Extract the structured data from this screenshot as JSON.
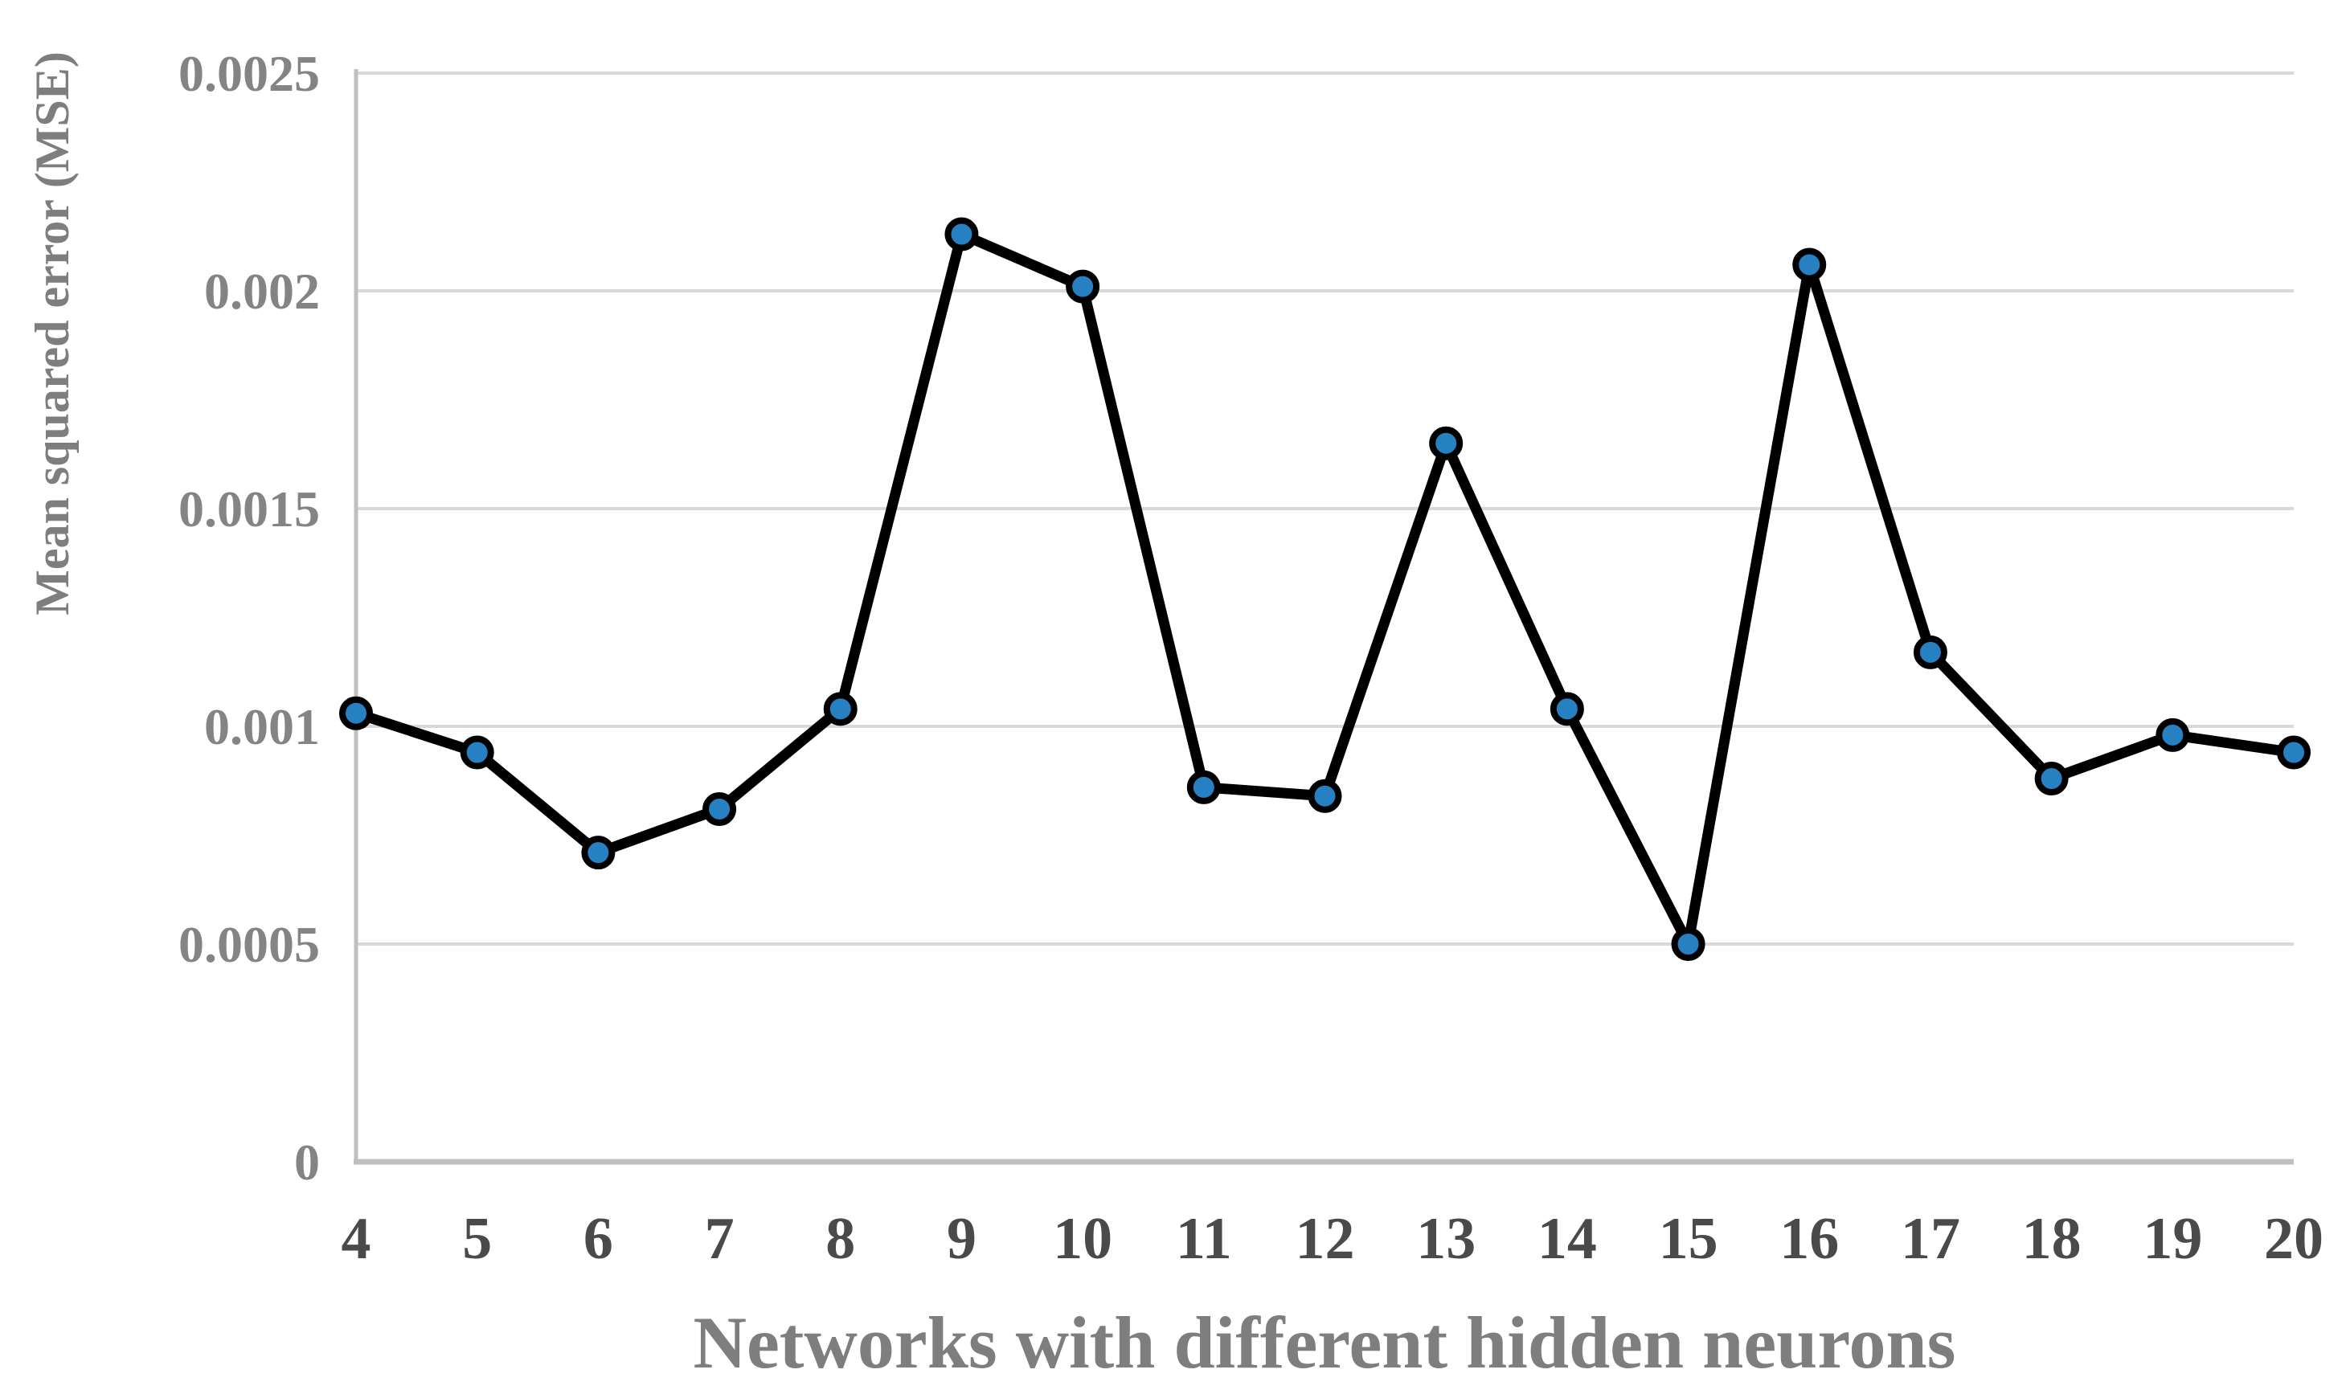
{
  "chart_data": {
    "type": "line",
    "title": "",
    "xlabel": "Networks with different hidden neurons",
    "ylabel": "Mean squared error (MSE)",
    "categories": [
      4,
      5,
      6,
      7,
      8,
      9,
      10,
      11,
      12,
      13,
      14,
      15,
      16,
      17,
      18,
      19,
      20
    ],
    "series": [
      {
        "name": "MSE",
        "values": [
          0.00103,
          0.00094,
          0.00071,
          0.00081,
          0.00104,
          0.00213,
          0.00201,
          0.00086,
          0.00084,
          0.00165,
          0.00104,
          0.0005,
          0.00206,
          0.00117,
          0.00088,
          0.00098,
          0.00094
        ]
      }
    ],
    "ylim": [
      0,
      0.0025
    ],
    "yticks": [
      {
        "label": "0",
        "value": 0
      },
      {
        "label": "0.0005",
        "value": 0.0005
      },
      {
        "label": "0.001",
        "value": 0.001
      },
      {
        "label": "0.0015",
        "value": 0.0015
      },
      {
        "label": "0.002",
        "value": 0.002
      },
      {
        "label": "0.0025",
        "value": 0.0025
      }
    ],
    "xtick_labels": [
      "4",
      "5",
      "6",
      "7",
      "8",
      "9",
      "10",
      "11",
      "12",
      "13",
      "14",
      "15",
      "16",
      "17",
      "18",
      "19",
      "20"
    ],
    "grid": "horizontal",
    "legend": "none",
    "colors": {
      "line": "#000000",
      "marker_fill": "#2680C2",
      "marker_stroke": "#000000",
      "gridline": "#D9D9D9",
      "axis_line": "#BFBFBF",
      "ytick_text": "#848484",
      "xtick_text": "#4A4A4A",
      "axis_title_text": "#7E7E7E",
      "background": "#FFFFFF"
    }
  }
}
